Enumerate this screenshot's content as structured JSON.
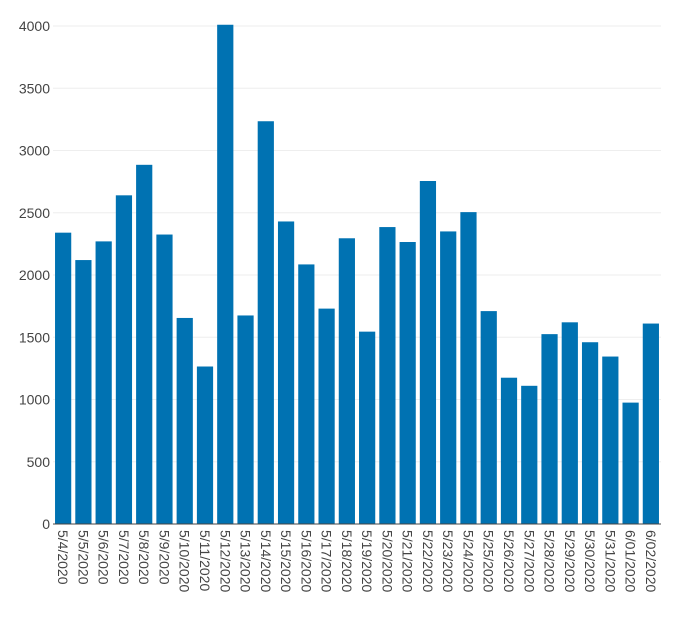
{
  "chart_data": {
    "type": "bar",
    "title": "",
    "xlabel": "",
    "ylabel": "",
    "categories": [
      "5/4/2020",
      "5/5/2020",
      "5/6/2020",
      "5/7/2020",
      "5/8/2020",
      "5/9/2020",
      "5/10/2020",
      "5/11/2020",
      "5/12/2020",
      "5/13/2020",
      "5/14/2020",
      "5/15/2020",
      "5/16/2020",
      "5/17/2020",
      "5/18/2020",
      "5/19/2020",
      "5/20/2020",
      "5/21/2020",
      "5/22/2020",
      "5/23/2020",
      "5/24/2020",
      "5/25/2020",
      "5/26/2020",
      "5/27/2020",
      "5/28/2020",
      "5/29/2020",
      "5/30/2020",
      "5/31/2020",
      "6/01/2020",
      "6/02/2020"
    ],
    "values": [
      2340,
      2120,
      2270,
      2640,
      2885,
      2325,
      1655,
      1265,
      4010,
      1675,
      3235,
      2430,
      2085,
      1730,
      2295,
      1545,
      2385,
      2265,
      2755,
      2350,
      2505,
      1710,
      1175,
      1110,
      1525,
      1620,
      1460,
      1345,
      975,
      1610
    ],
    "ylim": [
      0,
      4000
    ],
    "yticks": [
      0,
      500,
      1000,
      1500,
      2000,
      2500,
      3000,
      3500,
      4000
    ],
    "grid": true,
    "bar_color": "#0072b2",
    "axis_color": "#444444",
    "grid_color": "#eeeeee"
  }
}
